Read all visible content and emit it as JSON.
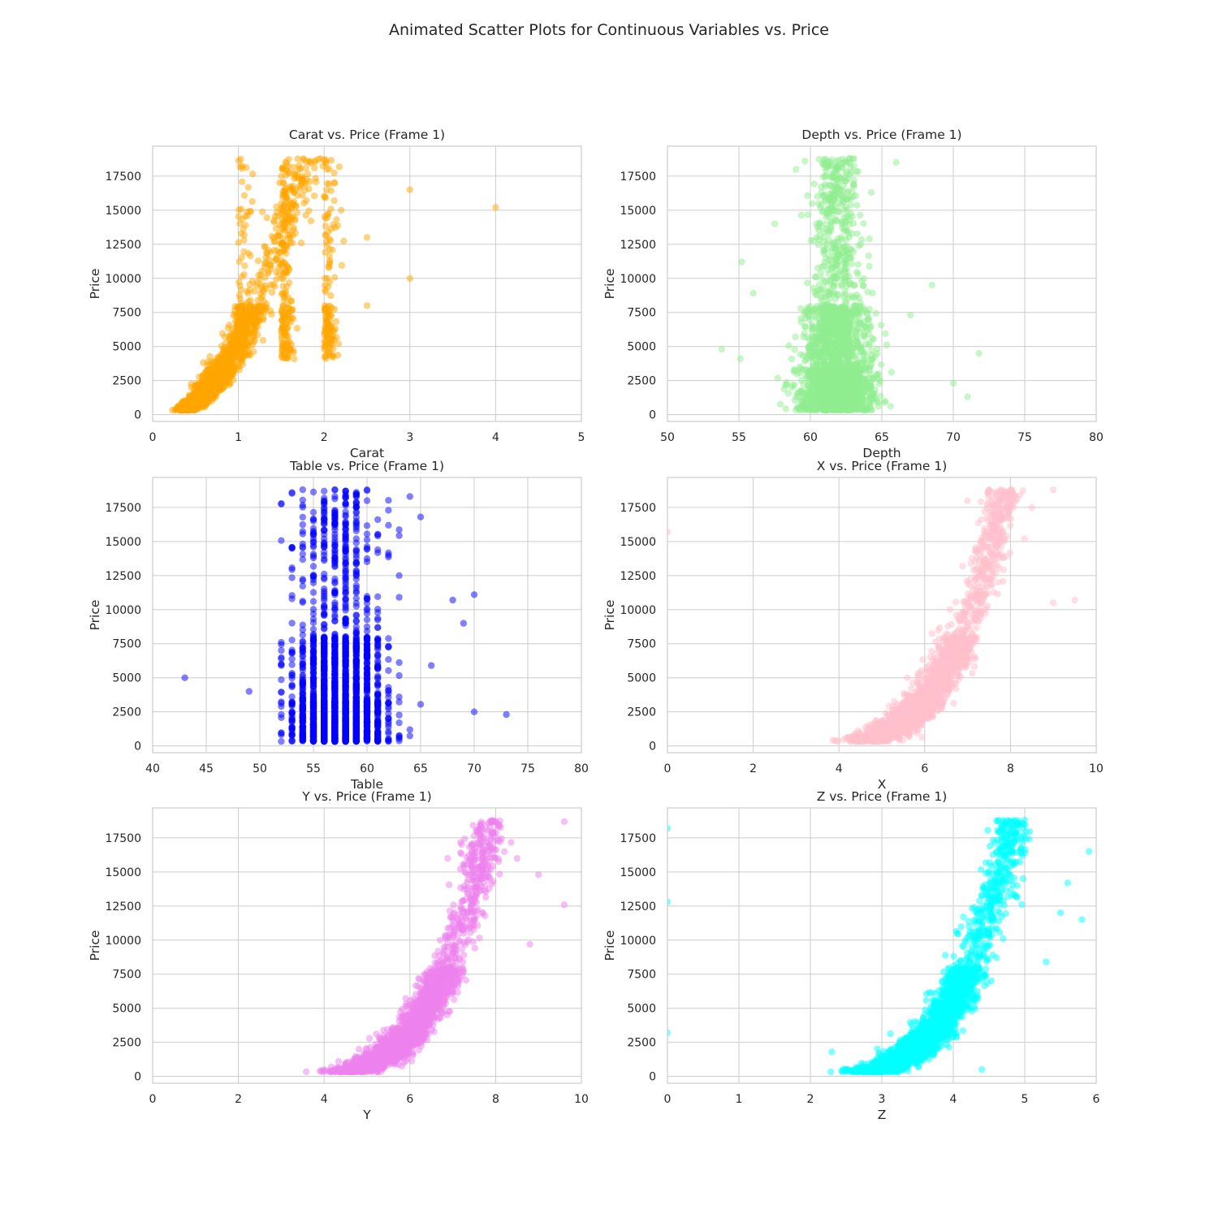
{
  "figure": {
    "title": "Animated Scatter Plots for Continuous Variables vs. Price"
  },
  "chart_data": [
    {
      "type": "scatter",
      "title": "Carat vs. Price (Frame 1)",
      "xlabel": "Carat",
      "ylabel": "Price",
      "xlim": [
        0,
        5
      ],
      "ylim": [
        -500,
        19700
      ],
      "xticks": [
        0,
        1,
        2,
        3,
        4,
        5
      ],
      "yticks": [
        0,
        2500,
        5000,
        7500,
        10000,
        12500,
        15000,
        17500
      ],
      "color": "#ffa500",
      "grid": true,
      "points": [
        [
          0.23,
          326
        ],
        [
          0.3,
          450
        ],
        [
          0.31,
          500
        ],
        [
          0.4,
          700
        ],
        [
          0.5,
          1100
        ],
        [
          0.7,
          2200
        ],
        [
          0.9,
          3500
        ],
        [
          1.0,
          4800
        ],
        [
          1.0,
          6500
        ],
        [
          1.2,
          7500
        ],
        [
          1.5,
          10000
        ],
        [
          1.5,
          12500
        ],
        [
          1.5,
          17500
        ],
        [
          2.0,
          16000
        ],
        [
          2.0,
          18700
        ],
        [
          2.2,
          15000
        ],
        [
          2.5,
          13000
        ],
        [
          2.5,
          8000
        ],
        [
          3.0,
          16500
        ],
        [
          3.0,
          10000
        ],
        [
          4.0,
          15200
        ]
      ]
    },
    {
      "type": "scatter",
      "title": "Depth vs. Price (Frame 1)",
      "xlabel": "Depth",
      "ylabel": "Price",
      "xlim": [
        50,
        80
      ],
      "ylim": [
        -500,
        19700
      ],
      "xticks": [
        50,
        55,
        60,
        65,
        70,
        75,
        80
      ],
      "yticks": [
        0,
        2500,
        5000,
        7500,
        10000,
        12500,
        15000,
        17500
      ],
      "color": "#90ee90",
      "grid": true,
      "points": [
        [
          53.8,
          4800
        ],
        [
          55.1,
          4100
        ],
        [
          55.2,
          11200
        ],
        [
          56,
          8900
        ],
        [
          57.5,
          14000
        ],
        [
          59,
          18000
        ],
        [
          60,
          3000
        ],
        [
          61,
          2500
        ],
        [
          61.8,
          10000
        ],
        [
          62,
          6000
        ],
        [
          62.5,
          18500
        ],
        [
          63,
          16000
        ],
        [
          64,
          9000
        ],
        [
          66,
          18500
        ],
        [
          67,
          7300
        ],
        [
          68.5,
          9500
        ],
        [
          70,
          2300
        ],
        [
          71,
          1300
        ],
        [
          71.8,
          4500
        ]
      ]
    },
    {
      "type": "scatter",
      "title": "Table vs. Price (Frame 1)",
      "xlabel": "Table",
      "ylabel": "Price",
      "xlim": [
        40,
        80
      ],
      "ylim": [
        -500,
        19700
      ],
      "xticks": [
        40,
        45,
        50,
        55,
        60,
        65,
        70,
        75,
        80
      ],
      "yticks": [
        0,
        2500,
        5000,
        7500,
        10000,
        12500,
        15000,
        17500
      ],
      "color": "#0000ff",
      "grid": true,
      "points": [
        [
          43,
          5000
        ],
        [
          49,
          4000
        ],
        [
          52,
          7600
        ],
        [
          53,
          10800
        ],
        [
          54,
          18800
        ],
        [
          55,
          16500
        ],
        [
          56,
          18700
        ],
        [
          57,
          18800
        ],
        [
          58,
          18700
        ],
        [
          59,
          18500
        ],
        [
          60,
          18800
        ],
        [
          61,
          15500
        ],
        [
          62,
          14000
        ],
        [
          63,
          12500
        ],
        [
          64,
          18300
        ],
        [
          65,
          16800
        ],
        [
          66,
          5900
        ],
        [
          68,
          10700
        ],
        [
          69,
          9000
        ],
        [
          70,
          11100
        ],
        [
          70,
          2500
        ],
        [
          73,
          2300
        ]
      ]
    },
    {
      "type": "scatter",
      "title": "X vs. Price (Frame 1)",
      "xlabel": "X",
      "ylabel": "Price",
      "xlim": [
        0,
        10
      ],
      "ylim": [
        -500,
        19700
      ],
      "xticks": [
        0,
        2,
        4,
        6,
        8,
        10
      ],
      "yticks": [
        0,
        2500,
        5000,
        7500,
        10000,
        12500,
        15000,
        17500
      ],
      "color": "#ffc0cb",
      "grid": true,
      "points": [
        [
          0,
          15700
        ],
        [
          3.9,
          400
        ],
        [
          4.5,
          900
        ],
        [
          5,
          1500
        ],
        [
          5.5,
          2500
        ],
        [
          6,
          4000
        ],
        [
          6.5,
          6500
        ],
        [
          7,
          9000
        ],
        [
          7.5,
          13000
        ],
        [
          7.5,
          18800
        ],
        [
          8,
          18800
        ],
        [
          8.5,
          17500
        ],
        [
          9,
          18800
        ],
        [
          9,
          10500
        ],
        [
          9.5,
          10700
        ]
      ]
    },
    {
      "type": "scatter",
      "title": "Y vs. Price (Frame 1)",
      "xlabel": "Y",
      "ylabel": "Price",
      "xlim": [
        0,
        10
      ],
      "ylim": [
        -500,
        19700
      ],
      "xticks": [
        0,
        2,
        4,
        6,
        8,
        10
      ],
      "yticks": [
        0,
        2500,
        5000,
        7500,
        10000,
        12500,
        15000,
        17500
      ],
      "color": "#ee82ee",
      "grid": true,
      "points": [
        [
          3.9,
          400
        ],
        [
          4.5,
          900
        ],
        [
          5,
          1500
        ],
        [
          5.5,
          2500
        ],
        [
          6,
          4000
        ],
        [
          6.5,
          6500
        ],
        [
          7,
          9000
        ],
        [
          7.5,
          13000
        ],
        [
          8,
          18700
        ],
        [
          8.5,
          16000
        ],
        [
          8.8,
          9700
        ],
        [
          9,
          14800
        ],
        [
          9.6,
          18700
        ],
        [
          9.6,
          12600
        ]
      ]
    },
    {
      "type": "scatter",
      "title": "Z vs. Price (Frame 1)",
      "xlabel": "Z",
      "ylabel": "Price",
      "xlim": [
        0,
        6
      ],
      "ylim": [
        -500,
        19700
      ],
      "xticks": [
        0,
        1,
        2,
        3,
        4,
        5,
        6
      ],
      "yticks": [
        0,
        2500,
        5000,
        7500,
        10000,
        12500,
        15000,
        17500
      ],
      "color": "#00ffff",
      "grid": true,
      "points": [
        [
          0,
          18200
        ],
        [
          0,
          12800
        ],
        [
          0,
          3200
        ],
        [
          2.3,
          1800
        ],
        [
          2.5,
          500
        ],
        [
          3,
          1500
        ],
        [
          3.5,
          3500
        ],
        [
          4,
          7000
        ],
        [
          4.4,
          500
        ],
        [
          4.5,
          13000
        ],
        [
          5,
          18800
        ],
        [
          5.3,
          8400
        ],
        [
          5.5,
          12000
        ],
        [
          5.6,
          14200
        ],
        [
          5.8,
          11500
        ],
        [
          5.9,
          16500
        ]
      ]
    }
  ]
}
